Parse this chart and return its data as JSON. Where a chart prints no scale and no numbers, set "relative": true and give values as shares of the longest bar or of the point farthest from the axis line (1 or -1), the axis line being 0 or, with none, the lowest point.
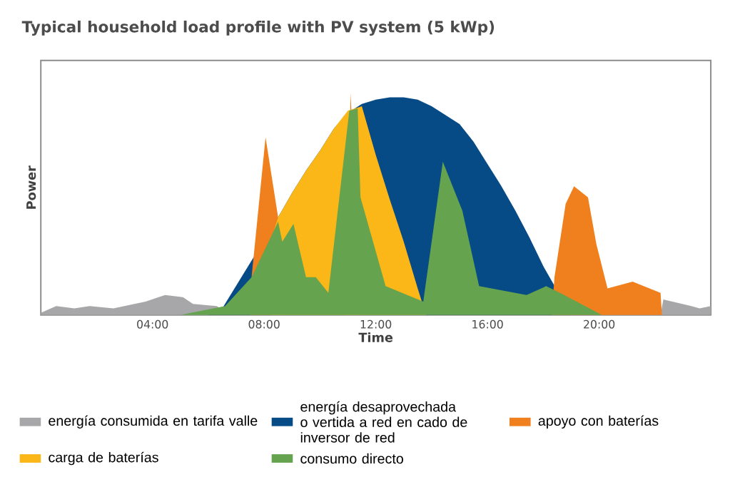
{
  "chart_data": {
    "type": "area",
    "title": "Typical household load profile with PV system (5 kWp)",
    "xlabel": "Time",
    "ylabel": "Power",
    "relative": true,
    "xlim": [
      0,
      24
    ],
    "xticks": [
      {
        "value": 4,
        "label": "04:00"
      },
      {
        "value": 8,
        "label": "08:00"
      },
      {
        "value": 12,
        "label": "12:00"
      },
      {
        "value": 16,
        "label": "16:00"
      },
      {
        "value": 20,
        "label": "20:00"
      }
    ],
    "legend": "bottom",
    "series": [
      {
        "name": "energía consumida en tarifa valle",
        "color": "#a7a7a9",
        "x": [
          0,
          0.55,
          1.2,
          1.75,
          2.6,
          3.75,
          4.45,
          5.1,
          5.45,
          6.3,
          6.8,
          22.2,
          22.3,
          23.3,
          23.6,
          24
        ],
        "values": [
          0.01,
          0.04,
          0.03,
          0.04,
          0.03,
          0.06,
          0.09,
          0.08,
          0.05,
          0.04,
          0,
          0,
          0.07,
          0.04,
          0.03,
          0.04
        ]
      },
      {
        "name": "energía desaprovechada o vertida a red en cado de inversor de red",
        "color": "#064a86",
        "x": [
          6,
          6.5,
          7,
          7.5,
          8,
          8.5,
          9,
          9.5,
          10,
          10.5,
          11,
          11.5,
          12,
          12.5,
          13,
          13.5,
          14,
          14.5,
          15,
          15.5,
          16,
          16.5,
          17,
          17.5,
          18,
          18.5,
          19
        ],
        "values": [
          0,
          0.03,
          null,
          null,
          null,
          0.44,
          0.55,
          0.65,
          0.74,
          0.84,
          0.91,
          0.95,
          0.97,
          0.98,
          0.98,
          0.97,
          0.94,
          0.9,
          0.86,
          0.78,
          0.68,
          0.58,
          0.47,
          0.35,
          0.22,
          null,
          0
        ]
      },
      {
        "name": "apoyo con baterías",
        "color": "#f0801e",
        "x": [
          7.5,
          7.55,
          8.05,
          8.5,
          8.6,
          10.9,
          11.1,
          11.35,
          11.4,
          18.3,
          18.4,
          18.8,
          19.1,
          19.6,
          19.9,
          20.3,
          21.2,
          22.2,
          22.25
        ],
        "values": [
          0,
          0.17,
          0.8,
          0.44,
          0,
          0,
          1.0,
          null,
          0,
          0,
          0.17,
          0.5,
          0.58,
          0.53,
          0.32,
          0.12,
          0.15,
          0.1,
          0
        ]
      },
      {
        "name": "carga de baterías",
        "color": "#fbb617",
        "x": [
          8.25,
          8.3,
          8.5,
          9,
          9.5,
          10,
          10.5,
          11,
          11.5,
          12,
          12.5,
          13,
          13.5,
          13.75,
          13.8
        ],
        "values": [
          0,
          0.36,
          0.44,
          0.55,
          0.65,
          0.74,
          0.84,
          0.92,
          0.94,
          0.72,
          0.52,
          0.33,
          0.12,
          null,
          0
        ]
      },
      {
        "name": "consumo directo",
        "color": "#65a34f",
        "x": [
          5.0,
          6.6,
          7.55,
          8.5,
          8.65,
          9.05,
          9.5,
          9.85,
          10.3,
          11.05,
          11.35,
          11.45,
          12.35,
          13.7,
          14.4,
          15.1,
          15.7,
          17.4,
          18.1,
          18.6,
          20.1
        ],
        "values": [
          0,
          0.04,
          0.17,
          0.42,
          0.33,
          0.41,
          0.17,
          0.17,
          0.1,
          0.92,
          0.93,
          0.53,
          0.13,
          0.06,
          0.69,
          0.47,
          0.13,
          0.09,
          0.13,
          0.1,
          0
        ]
      }
    ]
  }
}
